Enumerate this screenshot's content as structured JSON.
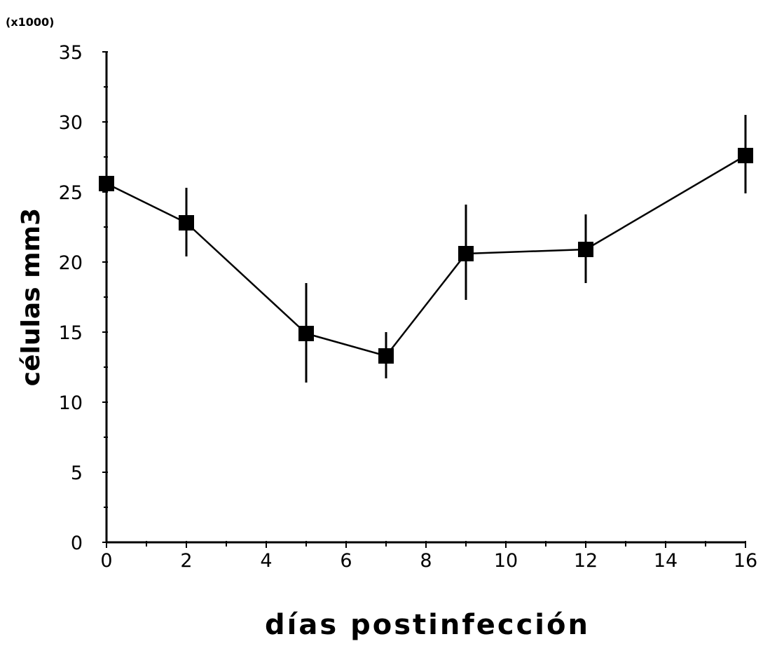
{
  "chart_data": {
    "type": "line",
    "title": "",
    "xlabel": "días postinfección",
    "ylabel": "células mm3",
    "y_multiplier": "(x1000)",
    "xlim": [
      0,
      16
    ],
    "ylim": [
      0,
      35
    ],
    "x_ticks": [
      "0",
      "2",
      "4",
      "6",
      "8",
      "10",
      "12",
      "14",
      "16"
    ],
    "y_ticks": [
      "0",
      "5",
      "10",
      "15",
      "20",
      "25",
      "30",
      "35"
    ],
    "grid": false,
    "legend": "none",
    "marker": "square",
    "color": "#000000",
    "series": [
      {
        "x": [
          0,
          2,
          5,
          7,
          9,
          12,
          16
        ],
        "y": [
          25.6,
          22.8,
          14.9,
          13.3,
          20.6,
          20.9,
          27.6
        ],
        "error": [
          [
            null,
            25.6
          ],
          [
            20.4,
            25.3
          ],
          [
            11.4,
            18.5
          ],
          [
            11.7,
            15.0
          ],
          [
            17.3,
            24.1
          ],
          [
            18.5,
            23.4
          ],
          [
            24.9,
            30.5
          ]
        ]
      }
    ]
  }
}
